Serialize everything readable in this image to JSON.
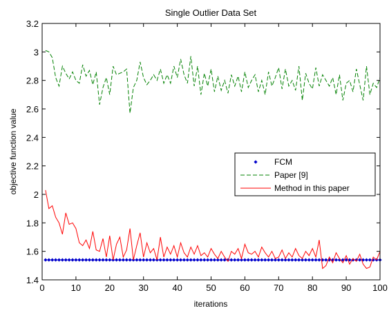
{
  "chart_data": {
    "type": "line",
    "title": "Single Outlier Data Set",
    "xlabel": "iterations",
    "ylabel": "objective function value",
    "xlim": [
      0,
      100
    ],
    "ylim": [
      1.4,
      3.2
    ],
    "xticks": [
      0,
      10,
      20,
      30,
      40,
      50,
      60,
      70,
      80,
      90,
      100
    ],
    "xtick_labels": [
      "0",
      "10",
      "20",
      "30",
      "40",
      "50",
      "60",
      "70",
      "80",
      "90",
      "100"
    ],
    "yticks": [
      1.4,
      1.6,
      1.8,
      2.0,
      2.2,
      2.4,
      2.6,
      2.8,
      3.0,
      3.2
    ],
    "ytick_labels": [
      "1.4",
      "1.6",
      "1.8",
      "2",
      "2.2",
      "2.4",
      "2.6",
      "2.8",
      "3",
      "3.2"
    ],
    "grid": false,
    "legend_position": "center-right",
    "x": [
      1,
      2,
      3,
      4,
      5,
      6,
      7,
      8,
      9,
      10,
      11,
      12,
      13,
      14,
      15,
      16,
      17,
      18,
      19,
      20,
      21,
      22,
      23,
      24,
      25,
      26,
      27,
      28,
      29,
      30,
      31,
      32,
      33,
      34,
      35,
      36,
      37,
      38,
      39,
      40,
      41,
      42,
      43,
      44,
      45,
      46,
      47,
      48,
      49,
      50,
      51,
      52,
      53,
      54,
      55,
      56,
      57,
      58,
      59,
      60,
      61,
      62,
      63,
      64,
      65,
      66,
      67,
      68,
      69,
      70,
      71,
      72,
      73,
      74,
      75,
      76,
      77,
      78,
      79,
      80,
      81,
      82,
      83,
      84,
      85,
      86,
      87,
      88,
      89,
      90,
      91,
      92,
      93,
      94,
      95,
      96,
      97,
      98,
      99,
      100
    ],
    "series": [
      {
        "name": "FCM",
        "color": "#0000cc",
        "style": "dotted-markers",
        "values": [
          1.54,
          1.54,
          1.54,
          1.54,
          1.54,
          1.54,
          1.54,
          1.54,
          1.54,
          1.54,
          1.54,
          1.54,
          1.54,
          1.54,
          1.54,
          1.54,
          1.54,
          1.54,
          1.54,
          1.54,
          1.54,
          1.54,
          1.54,
          1.54,
          1.54,
          1.54,
          1.54,
          1.54,
          1.54,
          1.54,
          1.54,
          1.54,
          1.54,
          1.54,
          1.54,
          1.54,
          1.54,
          1.54,
          1.54,
          1.54,
          1.54,
          1.54,
          1.54,
          1.54,
          1.54,
          1.54,
          1.54,
          1.54,
          1.54,
          1.54,
          1.54,
          1.54,
          1.54,
          1.54,
          1.54,
          1.54,
          1.54,
          1.54,
          1.54,
          1.54,
          1.54,
          1.54,
          1.54,
          1.54,
          1.54,
          1.54,
          1.54,
          1.54,
          1.54,
          1.54,
          1.54,
          1.54,
          1.54,
          1.54,
          1.54,
          1.54,
          1.54,
          1.54,
          1.54,
          1.54,
          1.54,
          1.54,
          1.54,
          1.54,
          1.54,
          1.54,
          1.54,
          1.54,
          1.54,
          1.54,
          1.54,
          1.54,
          1.54,
          1.54,
          1.54,
          1.54,
          1.54,
          1.54,
          1.54,
          1.54
        ]
      },
      {
        "name": "Paper [9]",
        "color": "#008000",
        "style": "dashed",
        "values": [
          3.01,
          3.0,
          2.96,
          2.82,
          2.76,
          2.9,
          2.85,
          2.81,
          2.86,
          2.8,
          2.78,
          2.91,
          2.83,
          2.87,
          2.77,
          2.86,
          2.63,
          2.75,
          2.82,
          2.7,
          2.9,
          2.84,
          2.85,
          2.86,
          2.88,
          2.57,
          2.75,
          2.8,
          2.93,
          2.82,
          2.77,
          2.8,
          2.84,
          2.8,
          2.88,
          2.78,
          2.84,
          2.78,
          2.9,
          2.82,
          2.95,
          2.84,
          2.78,
          2.97,
          2.76,
          2.9,
          2.7,
          2.85,
          2.76,
          2.88,
          2.72,
          2.83,
          2.73,
          2.8,
          2.71,
          2.84,
          2.76,
          2.83,
          2.72,
          2.86,
          2.75,
          2.8,
          2.84,
          2.72,
          2.8,
          2.7,
          2.86,
          2.76,
          2.82,
          2.89,
          2.74,
          2.88,
          2.76,
          2.8,
          2.73,
          2.9,
          2.66,
          2.85,
          2.78,
          2.74,
          2.89,
          2.76,
          2.84,
          2.8,
          2.76,
          2.82,
          2.7,
          2.84,
          2.66,
          2.78,
          2.8,
          2.72,
          2.88,
          2.77,
          2.66,
          2.9,
          2.7,
          2.78,
          2.75,
          2.82
        ]
      },
      {
        "name": "Method in this paper",
        "color": "#ff0000",
        "style": "solid",
        "values": [
          2.03,
          1.9,
          1.92,
          1.84,
          1.8,
          1.72,
          1.87,
          1.79,
          1.8,
          1.76,
          1.66,
          1.64,
          1.68,
          1.62,
          1.74,
          1.61,
          1.6,
          1.69,
          1.56,
          1.71,
          1.54,
          1.65,
          1.7,
          1.56,
          1.61,
          1.76,
          1.54,
          1.64,
          1.73,
          1.56,
          1.66,
          1.59,
          1.62,
          1.54,
          1.7,
          1.56,
          1.63,
          1.58,
          1.64,
          1.56,
          1.66,
          1.59,
          1.56,
          1.63,
          1.58,
          1.64,
          1.57,
          1.59,
          1.56,
          1.62,
          1.58,
          1.55,
          1.6,
          1.56,
          1.53,
          1.6,
          1.58,
          1.62,
          1.55,
          1.65,
          1.59,
          1.58,
          1.6,
          1.56,
          1.63,
          1.59,
          1.56,
          1.6,
          1.55,
          1.56,
          1.61,
          1.55,
          1.59,
          1.56,
          1.62,
          1.57,
          1.55,
          1.6,
          1.57,
          1.62,
          1.56,
          1.68,
          1.48,
          1.5,
          1.56,
          1.52,
          1.59,
          1.55,
          1.52,
          1.57,
          1.51,
          1.55,
          1.53,
          1.58,
          1.51,
          1.48,
          1.49,
          1.56,
          1.54,
          1.6
        ]
      }
    ]
  }
}
